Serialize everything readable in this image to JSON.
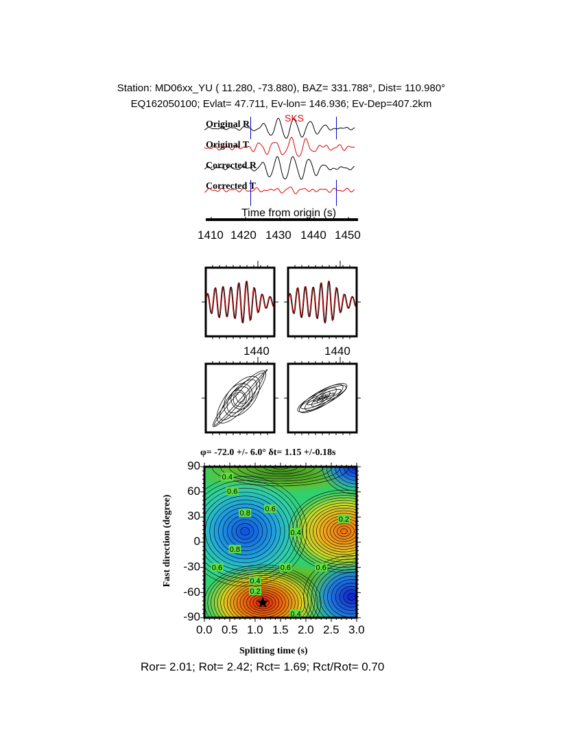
{
  "header": {
    "line1": "Station: MD06xx_YU (  11.280,  -73.880), BAZ=  331.788°, Dist=  110.980°",
    "line2": "EQ162050100; Evlat=  47.711, Ev-lon= 146.936; Ev-Dep=407.2km"
  },
  "traces": {
    "phase_label": "SKS",
    "labels": [
      "Original R",
      "Original T",
      "Corrected R",
      "Corrected T"
    ],
    "xlabel": "Time from origin (s)",
    "xticks": [
      "1410",
      "1420",
      "1430",
      "1440",
      "1450"
    ],
    "window_markers_s": [
      1421.5,
      1446.5
    ],
    "colors": {
      "radial": "#000000",
      "transverse": "#dd0000",
      "window": "#0000cc"
    }
  },
  "particle_panels": {
    "tick_label_left": "1440",
    "tick_label_right": "1440"
  },
  "chart_data": {
    "type": "contour",
    "title": "φ= -72.0 +/- 6.0° δt= 1.15 +/-0.18s",
    "xlabel": "Splitting time (s)",
    "ylabel": "Fast direction (degree)",
    "xlim": [
      0.0,
      3.0
    ],
    "ylim": [
      -90,
      90
    ],
    "xticks": [
      "0.0",
      "0.5",
      "1.0",
      "1.5",
      "2.0",
      "2.5",
      "3.0"
    ],
    "yticks": [
      "90",
      "60",
      "30",
      "0",
      "-30",
      "-60",
      "-90"
    ],
    "contour_labels": [
      "0.4",
      "0.6",
      "0.8",
      "0.6",
      "0.4",
      "0.2",
      "0.8",
      "0.6",
      "0.6",
      "0.6",
      "0.4",
      "0.2",
      "0.4"
    ],
    "best_fit": {
      "delay_s": 1.15,
      "phi_deg": -72.0
    },
    "minima": [
      {
        "delay_s": 1.15,
        "phi_deg": -72,
        "color": "#e03010"
      },
      {
        "delay_s": 2.75,
        "phi_deg": 13,
        "color": "#f08010"
      }
    ],
    "maxima": [
      {
        "delay_s": 0.8,
        "phi_deg": 13,
        "color": "#1060e0"
      },
      {
        "delay_s": 2.9,
        "phi_deg": -65,
        "color": "#1020d0"
      }
    ]
  },
  "footer": {
    "ratios": "Ror= 2.01; Rot= 2.42; Rct= 1.69; Rct/Rot= 0.70"
  }
}
